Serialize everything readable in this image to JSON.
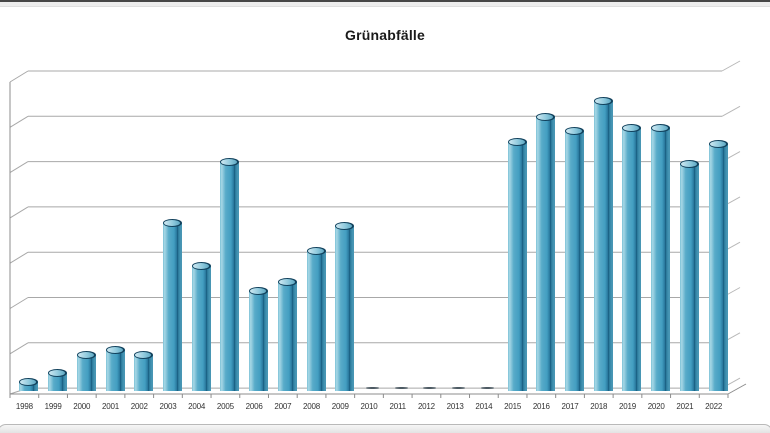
{
  "chart_data": {
    "type": "bar",
    "style": "3d-cylinder-columns",
    "title": "Grünabfälle",
    "categories": [
      "1998",
      "1999",
      "2000",
      "2001",
      "2002",
      "2003",
      "2004",
      "2005",
      "2006",
      "2007",
      "2008",
      "2009",
      "2010",
      "2011",
      "2012",
      "2013",
      "2014",
      "2015",
      "2016",
      "2017",
      "2018",
      "2019",
      "2020",
      "2021",
      "2022"
    ],
    "values": [
      0.2,
      0.4,
      0.8,
      0.9,
      0.8,
      3.7,
      2.75,
      5.05,
      2.2,
      2.4,
      3.1,
      3.65,
      0,
      0,
      0,
      0,
      0,
      5.5,
      6.05,
      5.75,
      6.4,
      5.8,
      5.8,
      5.0,
      5.45
    ],
    "xlabel": "",
    "ylabel": "",
    "ylim": [
      0,
      7
    ],
    "gridline_interval": 1,
    "note": "values estimated in gridline units; y-axis tick labels not visible (cropped at left edge)",
    "grid": true,
    "legend_position": "none",
    "colors": {
      "bar_fill": "#4aa3c4",
      "bar_shadow": "#145677",
      "bar_highlight": "#a6d7e5",
      "bar_cap_rim": "#12425d",
      "bar_cap_top": "#8cc8dc",
      "zero_marker": "#4d5a63",
      "gridline": "#a8a8a8",
      "axis": "#8c8c8c",
      "title_text": "#1a1a1a",
      "label_text": "#333333"
    }
  }
}
